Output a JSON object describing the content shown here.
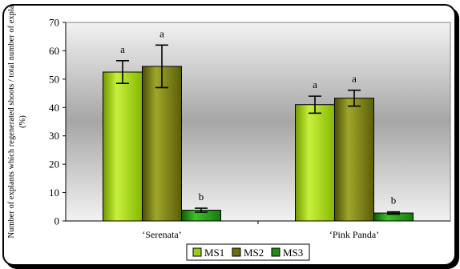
{
  "chart_data": {
    "type": "bar",
    "title": "",
    "xlabel": "",
    "ylabel": [
      "Number of explants which regenerated shoots / total number of expla",
      "(%)"
    ],
    "ylim": [
      0,
      70
    ],
    "yticks": [
      0,
      10,
      20,
      30,
      40,
      50,
      60,
      70
    ],
    "categories": [
      "‘Serenata’",
      "‘Pink Panda’"
    ],
    "series": [
      {
        "name": "MS1",
        "color": "#9acd17",
        "values": [
          52.5,
          41.0
        ],
        "errors": [
          4.0,
          3.0
        ],
        "labels": [
          "a",
          "a"
        ]
      },
      {
        "name": "MS2",
        "color": "#6b6f0a",
        "values": [
          54.5,
          43.3
        ],
        "errors": [
          7.5,
          2.8
        ],
        "labels": [
          "a",
          "a"
        ]
      },
      {
        "name": "MS3",
        "color": "#1f8a12",
        "values": [
          3.8,
          2.8
        ],
        "errors": [
          0.7,
          0.4
        ],
        "labels": [
          "b",
          "b"
        ]
      }
    ],
    "grid": false,
    "legend": "bottom"
  }
}
